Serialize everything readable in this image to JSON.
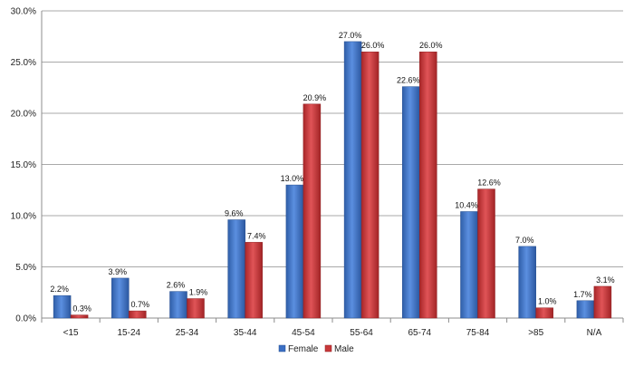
{
  "chart_data": {
    "type": "bar",
    "title": "",
    "xlabel": "",
    "ylabel": "",
    "categories": [
      "<15",
      "15-24",
      "25-34",
      "35-44",
      "45-54",
      "55-64",
      "65-74",
      "75-84",
      ">85",
      "N/A"
    ],
    "series": [
      {
        "name": "Female",
        "values": [
          2.2,
          3.9,
          2.6,
          9.6,
          13.0,
          27.0,
          22.6,
          10.4,
          7.0,
          1.7
        ],
        "color": "#3b6fc4"
      },
      {
        "name": "Male",
        "values": [
          0.3,
          0.7,
          1.9,
          7.4,
          20.9,
          26.0,
          26.0,
          12.6,
          1.0,
          3.1
        ],
        "color": "#c8383a"
      }
    ],
    "ylim": [
      0,
      30
    ],
    "yticks": [
      0,
      5,
      10,
      15,
      20,
      25,
      30
    ],
    "ytick_labels": [
      "0.0%",
      "5.0%",
      "10.0%",
      "15.0%",
      "20.0%",
      "25.0%",
      "30.0%"
    ],
    "data_labels": [
      [
        "2.2%",
        "3.9%",
        "2.6%",
        "9.6%",
        "13.0%",
        "27.0%",
        "22.6%",
        "10.4%",
        "7.0%",
        "1.7%"
      ],
      [
        "0.3%",
        "0.7%",
        "1.9%",
        "7.4%",
        "20.9%",
        "26.0%",
        "26.0%",
        "12.6%",
        "1.0%",
        "3.1%"
      ]
    ],
    "grid": true,
    "legend": "bottom"
  }
}
